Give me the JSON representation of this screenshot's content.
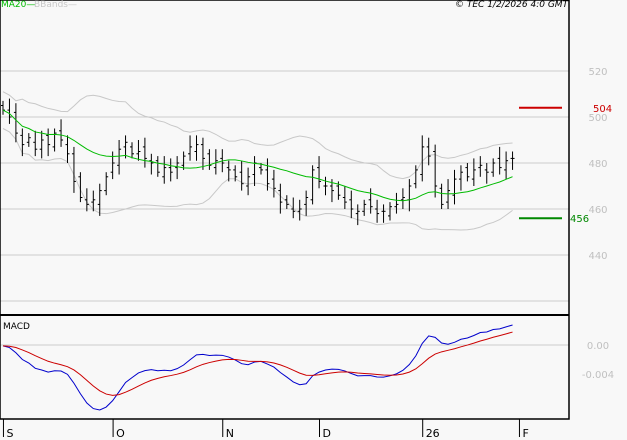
{
  "legend": {
    "ma": "MA20",
    "bb": "BBands",
    "copyright": "© TEC 1/2/2026 4:0 GMT"
  },
  "colors": {
    "ma": "#00bb00",
    "bb": "#c8c8c8",
    "resistance": "#cc0000",
    "support": "#008800",
    "macd": "#0000cc",
    "signal": "#cc0000",
    "grid": "#cccccc",
    "axisText": "#c0c0c0"
  },
  "levels": {
    "resistance": {
      "value": 504,
      "label": "504"
    },
    "support": {
      "value": 456,
      "label": "456"
    }
  },
  "macd_panel": {
    "title": "MACD",
    "ticks": [
      {
        "value": 0,
        "label": "0.00"
      },
      {
        "value": -0.004,
        "label": "-0.004"
      }
    ]
  },
  "chart_data": {
    "type": "ohlc",
    "title": "",
    "y_ticks": [
      {
        "value": 520,
        "label": "520"
      },
      {
        "value": 500,
        "label": "500"
      },
      {
        "value": 480,
        "label": "480"
      },
      {
        "value": 460,
        "label": "460"
      },
      {
        "value": 440,
        "label": "440"
      }
    ],
    "extra_grid": [
      420
    ],
    "ylim": [
      412,
      530
    ],
    "x_labels": [
      {
        "index": 1,
        "label": "S"
      },
      {
        "index": 18,
        "label": "O"
      },
      {
        "index": 35,
        "label": "N"
      },
      {
        "index": 50,
        "label": "D"
      },
      {
        "index": 66,
        "label": "26"
      },
      {
        "index": 81,
        "label": "F"
      }
    ],
    "closes": [
      503,
      500,
      493,
      488,
      491,
      486,
      490,
      488,
      493,
      490,
      484,
      472,
      465,
      462,
      464,
      468,
      474,
      480,
      486,
      489,
      484,
      485,
      482,
      480,
      476,
      478,
      476,
      480,
      483,
      487,
      488,
      482,
      479,
      481,
      480,
      477,
      474,
      471,
      474,
      480,
      477,
      471,
      469,
      463,
      462,
      459,
      460,
      465,
      477,
      472,
      470,
      468,
      466,
      463,
      460,
      459,
      462,
      461,
      458,
      459,
      461,
      462,
      465,
      470,
      477,
      487,
      483,
      470,
      462,
      468,
      473,
      476,
      474,
      477,
      479,
      476,
      480,
      478,
      481,
      482
    ],
    "indicators": [
      "MA20",
      "BBands(20,2)",
      "MACD(12,26,9)"
    ]
  }
}
